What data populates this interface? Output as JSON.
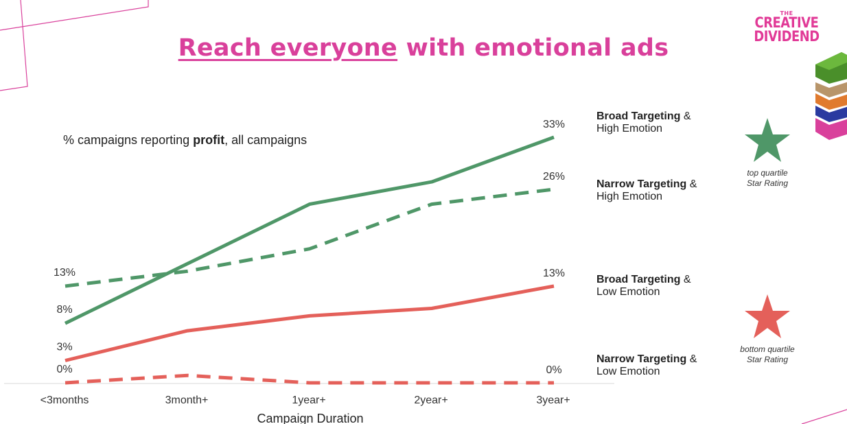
{
  "title_part1": "Reach everyone",
  "title_part2": " with emotional ads",
  "brand": {
    "the": "THE",
    "line1": "CREATIVE",
    "line2": "DIVIDEND"
  },
  "subtitle_pre": "% campaigns reporting ",
  "subtitle_bold": "profit",
  "subtitle_post": ", all campaigns",
  "legend": [
    {
      "bold": "Broad Targeting",
      "amp": " &",
      "line2": "High Emotion"
    },
    {
      "bold": "Narrow Targeting",
      "amp": " &",
      "line2": "High Emotion"
    },
    {
      "bold": "Broad Targeting",
      "amp": " &",
      "line2": "Low Emotion"
    },
    {
      "bold": "Narrow Targeting",
      "amp": " &",
      "line2": "Low Emotion"
    }
  ],
  "stars": [
    {
      "color": "#4f9768",
      "cap1": "top quartile",
      "cap2": "Star Rating"
    },
    {
      "color": "#e4605a",
      "cap1": "bottom quartile",
      "cap2": "Star Rating"
    }
  ],
  "colors": {
    "green": "#4f9768",
    "red": "#e4605a",
    "title": "#d9409b"
  },
  "chart_data": {
    "type": "line",
    "x": [
      "<3months",
      "3month+",
      "1year+",
      "2year+",
      "3year+"
    ],
    "xlabel": "Campaign Duration",
    "ylabel": "",
    "ylim": [
      0,
      34
    ],
    "grid": false,
    "series": [
      {
        "name": "Broad Targeting & High Emotion",
        "values": [
          8,
          16,
          24,
          27,
          33
        ],
        "color": "#4f9768",
        "dash": false,
        "labels": {
          "0": "8%",
          "4": "33%"
        }
      },
      {
        "name": "Narrow Targeting & High Emotion",
        "values": [
          13,
          15,
          18,
          24,
          26
        ],
        "color": "#4f9768",
        "dash": true,
        "labels": {
          "0": "13%",
          "4": "26%"
        }
      },
      {
        "name": "Broad Targeting & Low Emotion",
        "values": [
          3,
          7,
          9,
          10,
          13
        ],
        "color": "#e4605a",
        "dash": false,
        "labels": {
          "0": "3%",
          "4": "13%"
        }
      },
      {
        "name": "Narrow Targeting & Low Emotion",
        "values": [
          0,
          1,
          0,
          0,
          0
        ],
        "color": "#e4605a",
        "dash": true,
        "labels": {
          "0": "0%",
          "4": "0%"
        }
      }
    ]
  }
}
